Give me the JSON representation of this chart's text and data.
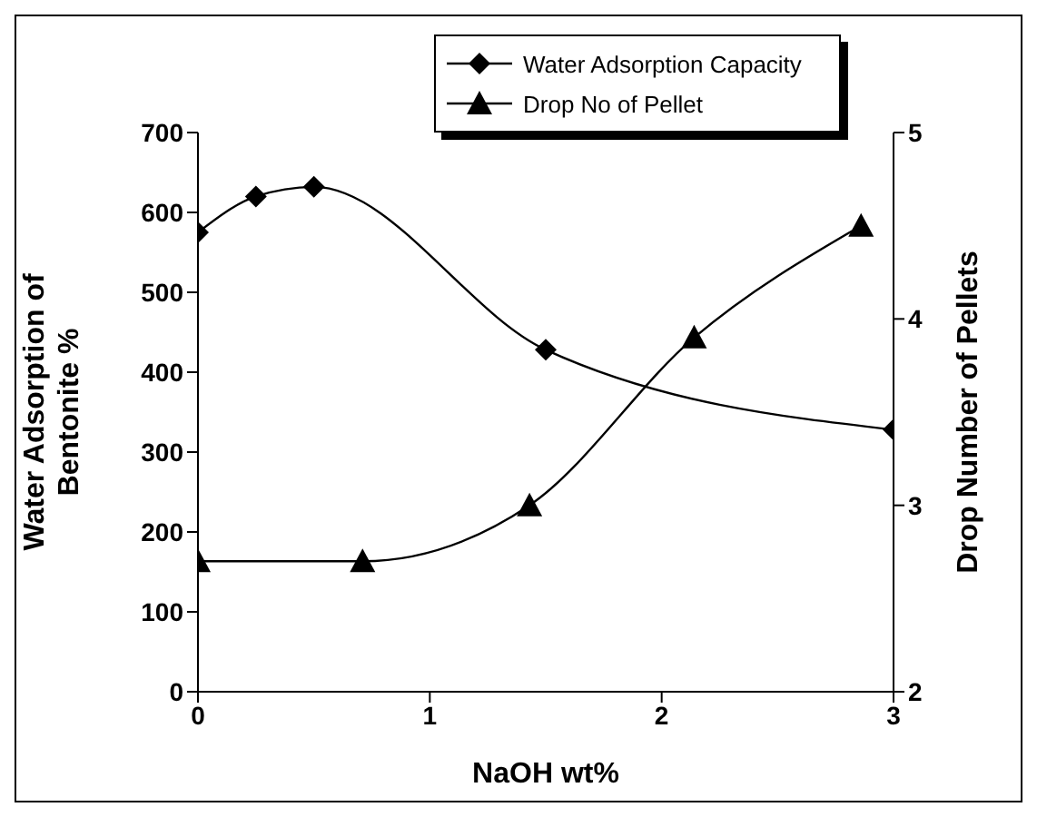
{
  "chart_data": {
    "type": "line",
    "xlabel": "NaOH wt%",
    "ylabel": "Water Adsorption of Bentonite %",
    "y2label": "Drop Number of Pellets",
    "series": [
      {
        "name": "Water Adsorption Capacity",
        "color": "#000000",
        "marker": "diamond",
        "x": [
          0,
          0.25,
          0.5,
          1.5,
          3
        ],
        "values": [
          575,
          620,
          632,
          428,
          328
        ]
      },
      {
        "name": "Drop No of Pellet",
        "color": "#000000",
        "marker": "triangle",
        "axis": "y2",
        "x": [
          0,
          0.71,
          1.43,
          2.14,
          2.86
        ],
        "values": [
          2.7,
          2.7,
          3.0,
          3.9,
          4.5
        ]
      }
    ],
    "xlim": [
      0,
      3
    ],
    "xticks": [
      0,
      1,
      2,
      3
    ],
    "ylim": [
      0,
      700
    ],
    "yticks": [
      0,
      100,
      200,
      300,
      400,
      500,
      600,
      700
    ],
    "y2lim": [
      2,
      5
    ],
    "y2ticks": [
      2,
      3,
      4,
      5
    ],
    "legend": "top"
  }
}
